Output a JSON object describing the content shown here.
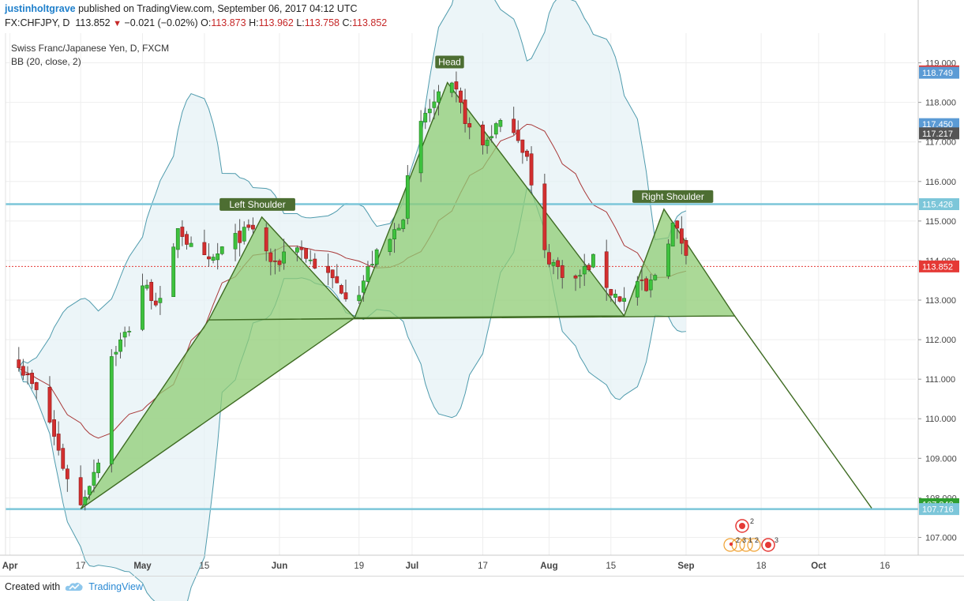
{
  "header": {
    "author": "justinholtgrave",
    "published_text": "published on TradingView.com, September 06, 2017 04:12 UTC",
    "symbol": "FX:CHFJPY, D",
    "last": "113.852",
    "change": "−0.021 (−0.02%)",
    "open_label": "O:",
    "open": "113.873",
    "high_label": "H:",
    "high": "113.962",
    "low_label": "L:",
    "low": "113.758",
    "close_label": "C:",
    "close": "113.852"
  },
  "legend": {
    "instrument": "Swiss Franc/Japanese Yen, D, FXCM",
    "indicator": "BB (20, close, 2)"
  },
  "footer": {
    "created_with": "Created with",
    "brand": "TradingView"
  },
  "colors": {
    "up": "#3ec23e",
    "down": "#d32f2f",
    "band": "#4f9bad",
    "band_fill": "#e4f1f5",
    "basis": "#a83838",
    "pattern_fill": "#8fcc74",
    "pattern_line": "#3e6b22",
    "hline": "#7cc6d9",
    "label_bg": "#4d6e32"
  },
  "chart_data": {
    "type": "candlestick",
    "y_axis": {
      "ylim": [
        106.55,
        119.75
      ],
      "ticks": [
        "107.000",
        "108.000",
        "109.000",
        "110.000",
        "111.000",
        "112.000",
        "113.000",
        "114.000",
        "115.000",
        "116.000",
        "117.000",
        "118.000",
        "119.000"
      ]
    },
    "x_axis": {
      "labels": [
        {
          "text": "Apr",
          "day": 0
        },
        {
          "text": "17",
          "day": 16
        },
        {
          "text": "May",
          "day": 30
        },
        {
          "text": "15",
          "day": 44
        },
        {
          "text": "Jun",
          "day": 61
        },
        {
          "text": "19",
          "day": 79
        },
        {
          "text": "Jul",
          "day": 91
        },
        {
          "text": "17",
          "day": 107
        },
        {
          "text": "Aug",
          "day": 122
        },
        {
          "text": "15",
          "day": 136
        },
        {
          "text": "Sep",
          "day": 153
        },
        {
          "text": "18",
          "day": 170
        },
        {
          "text": "Oct",
          "day": 183
        },
        {
          "text": "16",
          "day": 198
        }
      ]
    },
    "price_labels": [
      {
        "value": 118.784,
        "text": "118.784",
        "color": "#e53935"
      },
      {
        "value": 118.749,
        "text": "118.749",
        "color": "#5b9bd5"
      },
      {
        "value": 117.45,
        "text": "117.450",
        "color": "#5b9bd5"
      },
      {
        "value": 117.217,
        "text": "117.217",
        "color": "#555555"
      },
      {
        "value": 115.426,
        "text": "115.426",
        "color": "#7cc6d9"
      },
      {
        "value": 113.852,
        "text": "113.852",
        "color": "#e53935"
      },
      {
        "value": 107.84,
        "text": "107.840",
        "color": "#2e9e2e"
      },
      {
        "value": 107.716,
        "text": "107.716",
        "color": "#7cc6d9"
      }
    ],
    "horizontal_lines": [
      115.426,
      107.716
    ],
    "last_price": 113.852,
    "pattern": {
      "left_triangle": [
        [
          16,
          107.72
        ],
        [
          45,
          112.5
        ],
        [
          57,
          115.1
        ],
        [
          78,
          112.55
        ]
      ],
      "head_triangle": [
        [
          78,
          112.55
        ],
        [
          99,
          118.5
        ],
        [
          139,
          112.6
        ]
      ],
      "right_triangle": [
        [
          139,
          112.6
        ],
        [
          148,
          115.3
        ],
        [
          164,
          112.6
        ],
        [
          45,
          112.5
        ]
      ],
      "projection": [
        [
          164,
          112.6
        ],
        [
          195,
          107.74
        ]
      ],
      "labels": [
        {
          "text": "Left Shoulder",
          "day": 56,
          "value": 115.4
        },
        {
          "text": "Head",
          "day": 99.5,
          "value": 119.0
        },
        {
          "text": "Right Shoulder",
          "day": 150,
          "value": 115.6
        }
      ]
    },
    "events_digits": [
      "2",
      "2",
      "3",
      "1",
      "2",
      "3"
    ],
    "candles": []
  }
}
